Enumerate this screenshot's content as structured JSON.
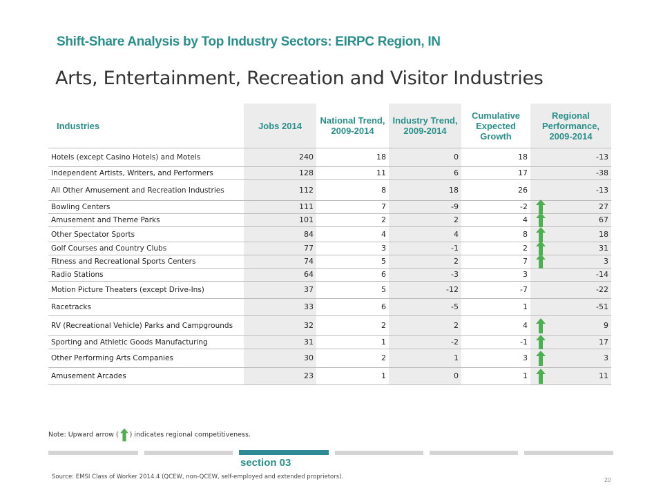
{
  "header_title": "Shift-Share Analysis by Top Industry Sectors: EIRPC Region, IN",
  "page_title": "Arts, Entertainment, Recreation and Visitor Industries",
  "columns": [
    "Industries",
    "Jobs 2014",
    "National Trend, 2009-2014",
    "Industry Trend, 2009-2014",
    "Cumulative Expected Growth",
    "Regional Performance, 2009-2014"
  ],
  "rows": [
    {
      "name": "Hotels (except Casino Hotels) and Motels",
      "jobs": "240",
      "national": "18",
      "industry": "0",
      "cumulative": "18",
      "regional": "-13",
      "arrow": false
    },
    {
      "name": "Independent Artists, Writers, and Performers",
      "jobs": "128",
      "national": "11",
      "industry": "6",
      "cumulative": "17",
      "regional": "-38",
      "arrow": false
    },
    {
      "name": "All Other Amusement and Recreation Industries",
      "jobs": "112",
      "national": "8",
      "industry": "18",
      "cumulative": "26",
      "regional": "-13",
      "arrow": false
    },
    {
      "name": "Bowling Centers",
      "jobs": "111",
      "national": "7",
      "industry": "-9",
      "cumulative": "-2",
      "regional": "27",
      "arrow": true
    },
    {
      "name": "Amusement and Theme Parks",
      "jobs": "101",
      "national": "2",
      "industry": "2",
      "cumulative": "4",
      "regional": "67",
      "arrow": true
    },
    {
      "name": "Other Spectator Sports",
      "jobs": "84",
      "national": "4",
      "industry": "4",
      "cumulative": "8",
      "regional": "18",
      "arrow": true
    },
    {
      "name": "Golf Courses and Country Clubs",
      "jobs": "77",
      "national": "3",
      "industry": "-1",
      "cumulative": "2",
      "regional": "31",
      "arrow": true
    },
    {
      "name": "Fitness and Recreational Sports Centers",
      "jobs": "74",
      "national": "5",
      "industry": "2",
      "cumulative": "7",
      "regional": "3",
      "arrow": true
    },
    {
      "name": "Radio Stations",
      "jobs": "64",
      "national": "6",
      "industry": "-3",
      "cumulative": "3",
      "regional": "-14",
      "arrow": false
    },
    {
      "name": "Motion Picture Theaters (except Drive-Ins)",
      "jobs": "37",
      "national": "5",
      "industry": "-12",
      "cumulative": "-7",
      "regional": "-22",
      "arrow": false
    },
    {
      "name": "Racetracks",
      "jobs": "33",
      "national": "6",
      "industry": "-5",
      "cumulative": "1",
      "regional": "-51",
      "arrow": false
    },
    {
      "name": "RV (Recreational Vehicle) Parks and Campgrounds",
      "jobs": "32",
      "national": "2",
      "industry": "2",
      "cumulative": "4",
      "regional": "9",
      "arrow": true
    },
    {
      "name": "Sporting and Athletic Goods Manufacturing",
      "jobs": "31",
      "national": "1",
      "industry": "-2",
      "cumulative": "-1",
      "regional": "17",
      "arrow": true
    },
    {
      "name": "Other Performing Arts Companies",
      "jobs": "30",
      "national": "2",
      "industry": "1",
      "cumulative": "3",
      "regional": "3",
      "arrow": true
    },
    {
      "name": "Amusement Arcades",
      "jobs": "23",
      "national": "1",
      "industry": "0",
      "cumulative": "1",
      "regional": "11",
      "arrow": true
    }
  ],
  "note_before": "Note: Upward arrow (",
  "note_after": ") indicates regional competitiveness.",
  "section_label": "section 03",
  "source": "Source: EMSI Class of Worker 2014.4 (QCEW, non-QCEW, self-employed and extended proprietors).",
  "page_number": "20",
  "colors": {
    "accent": "#2a8f8a",
    "arrow": "#4caf50",
    "shaded": "#ececec",
    "active_bar": "#2e8b95",
    "inactive_bar": "#d4d4d4"
  }
}
